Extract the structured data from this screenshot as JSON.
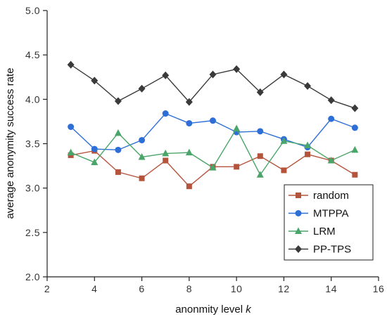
{
  "chart_data": {
    "type": "line",
    "title": "",
    "xlabel": "anonmity level ",
    "xlabel_var": "k",
    "ylabel": "average anonymity success rate",
    "xlim": [
      2,
      16
    ],
    "ylim": [
      2.0,
      5.0
    ],
    "xticks": [
      "2",
      "4",
      "6",
      "8",
      "10",
      "12",
      "14",
      "16"
    ],
    "yticks": [
      "2.0",
      "2.5",
      "3.0",
      "3.5",
      "4.0",
      "4.5",
      "5.0"
    ],
    "grid": false,
    "legend_position": "bottom-right",
    "x": [
      3,
      4,
      5,
      6,
      7,
      8,
      9,
      10,
      11,
      12,
      13,
      14,
      15
    ],
    "series": [
      {
        "name": "random",
        "color": "#b5543c",
        "marker": "square",
        "values": [
          3.37,
          3.42,
          3.18,
          3.11,
          3.31,
          3.02,
          3.24,
          3.24,
          3.36,
          3.2,
          3.38,
          3.31,
          3.15
        ]
      },
      {
        "name": "MTPPA",
        "color": "#2d6fd6",
        "marker": "circle",
        "values": [
          3.69,
          3.44,
          3.43,
          3.54,
          3.84,
          3.73,
          3.76,
          3.63,
          3.64,
          3.55,
          3.46,
          3.78,
          3.68
        ]
      },
      {
        "name": "LRM",
        "color": "#4aa56a",
        "marker": "triangle",
        "values": [
          3.4,
          3.29,
          3.62,
          3.35,
          3.39,
          3.4,
          3.23,
          3.67,
          3.15,
          3.53,
          3.48,
          3.31,
          3.43
        ]
      },
      {
        "name": "PP-TPS",
        "color": "#3a3a3a",
        "marker": "diamond",
        "values": [
          4.39,
          4.21,
          3.98,
          4.12,
          4.27,
          3.97,
          4.28,
          4.34,
          4.08,
          4.28,
          4.15,
          3.99,
          3.9
        ]
      }
    ]
  }
}
